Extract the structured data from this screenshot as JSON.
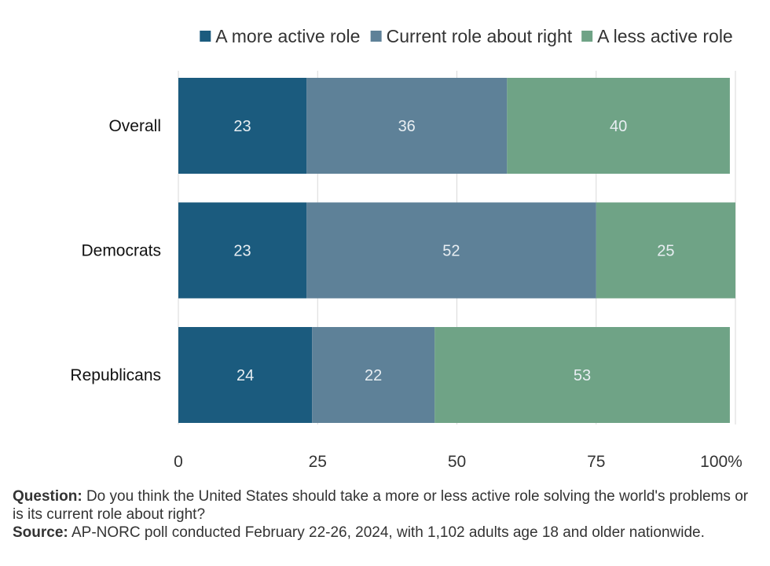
{
  "chart_data": {
    "type": "bar",
    "orientation": "horizontal",
    "stacked": true,
    "categories": [
      "Overall",
      "Democrats",
      "Republicans"
    ],
    "series": [
      {
        "name": "A more active role",
        "values": [
          23,
          23,
          24
        ],
        "color": "#1b5b7e"
      },
      {
        "name": "Current role about right",
        "values": [
          36,
          52,
          22
        ],
        "color": "#5e8198"
      },
      {
        "name": "A less active role",
        "values": [
          40,
          25,
          53
        ],
        "color": "#6fa386"
      }
    ],
    "xlim": [
      0,
      100
    ],
    "x_ticks": [
      "0",
      "25",
      "50",
      "75",
      "100%"
    ],
    "grid": "vertical",
    "legend_position": "top-right"
  },
  "notes": {
    "question_label": "Question:",
    "question_text": "Do you think the United States should take a more or less active role solving the world's problems or is its current role about right?",
    "source_label": "Source:",
    "source_text": "AP-NORC poll conducted February 22-26, 2024, with 1,102 adults age 18 and older nationwide."
  }
}
